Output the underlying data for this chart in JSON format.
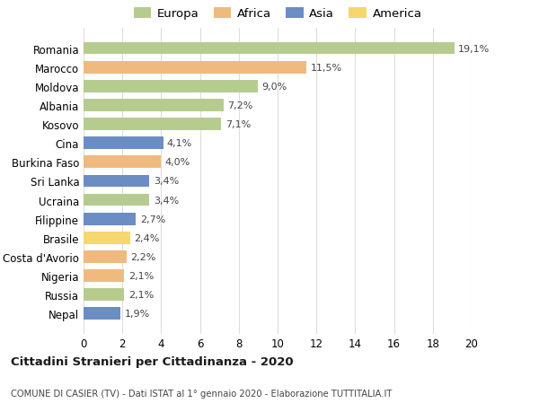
{
  "categories": [
    "Romania",
    "Marocco",
    "Moldova",
    "Albania",
    "Kosovo",
    "Cina",
    "Burkina Faso",
    "Sri Lanka",
    "Ucraina",
    "Filippine",
    "Brasile",
    "Costa d'Avorio",
    "Nigeria",
    "Russia",
    "Nepal"
  ],
  "values": [
    19.1,
    11.5,
    9.0,
    7.2,
    7.1,
    4.1,
    4.0,
    3.4,
    3.4,
    2.7,
    2.4,
    2.2,
    2.1,
    2.1,
    1.9
  ],
  "labels": [
    "19,1%",
    "11,5%",
    "9,0%",
    "7,2%",
    "7,1%",
    "4,1%",
    "4,0%",
    "3,4%",
    "3,4%",
    "2,7%",
    "2,4%",
    "2,2%",
    "2,1%",
    "2,1%",
    "1,9%"
  ],
  "continent": [
    "Europa",
    "Africa",
    "Europa",
    "Europa",
    "Europa",
    "Asia",
    "Africa",
    "Asia",
    "Europa",
    "Asia",
    "America",
    "Africa",
    "Africa",
    "Europa",
    "Asia"
  ],
  "colors": {
    "Europa": "#b5cc8e",
    "Africa": "#f0b97e",
    "Asia": "#6b8dc4",
    "America": "#f5d76e"
  },
  "legend_order": [
    "Europa",
    "Africa",
    "Asia",
    "America"
  ],
  "title": "Cittadini Stranieri per Cittadinanza - 2020",
  "subtitle": "COMUNE DI CASIER (TV) - Dati ISTAT al 1° gennaio 2020 - Elaborazione TUTTITALIA.IT",
  "xlim": [
    0,
    20
  ],
  "xticks": [
    0,
    2,
    4,
    6,
    8,
    10,
    12,
    14,
    16,
    18,
    20
  ],
  "background_color": "#ffffff",
  "grid_color": "#dddddd"
}
